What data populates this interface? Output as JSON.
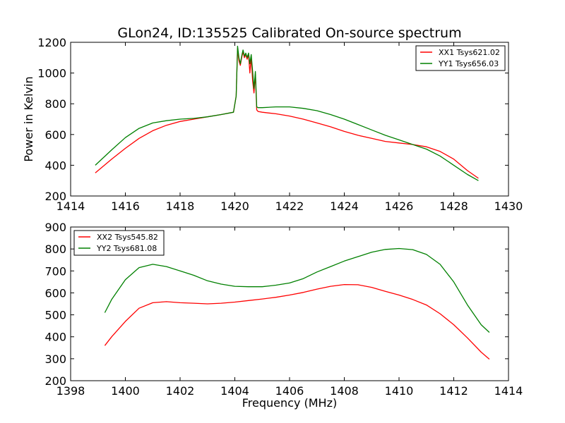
{
  "chart_data": [
    {
      "type": "line",
      "title": "GLon24, ID:135525 Calibrated On-source spectrum",
      "ylabel": "Power in Kelvin",
      "xlabel": "",
      "xlim": [
        1414,
        1430
      ],
      "ylim": [
        200,
        1200
      ],
      "xticks": [
        "1414",
        "1416",
        "1418",
        "1420",
        "1422",
        "1424",
        "1426",
        "1428",
        "1430"
      ],
      "yticks": [
        "200",
        "400",
        "600",
        "800",
        "1000",
        "1200"
      ],
      "legend_position": "top-right",
      "series": [
        {
          "name": "XX1 Tsys621.02",
          "color": "#ff0000",
          "x": [
            1414.9,
            1415.5,
            1416.0,
            1416.5,
            1417.0,
            1417.5,
            1418.0,
            1418.5,
            1419.0,
            1419.5,
            1419.95,
            1420.05,
            1420.1,
            1420.15,
            1420.2,
            1420.25,
            1420.3,
            1420.35,
            1420.4,
            1420.45,
            1420.5,
            1420.55,
            1420.6,
            1420.65,
            1420.7,
            1420.75,
            1420.8,
            1420.85,
            1421.0,
            1421.5,
            1422.0,
            1422.5,
            1423.0,
            1423.5,
            1424.0,
            1424.5,
            1425.0,
            1425.5,
            1426.0,
            1426.5,
            1427.0,
            1427.5,
            1428.0,
            1428.5,
            1428.9
          ],
          "y": [
            350,
            440,
            510,
            575,
            625,
            660,
            685,
            700,
            715,
            730,
            745,
            850,
            1160,
            1080,
            1050,
            1100,
            1140,
            1100,
            1120,
            1090,
            1120,
            1000,
            1100,
            950,
            870,
            990,
            760,
            750,
            745,
            735,
            720,
            700,
            675,
            650,
            620,
            595,
            575,
            555,
            545,
            535,
            520,
            490,
            440,
            365,
            315
          ]
        },
        {
          "name": "YY1 Tsys656.03",
          "color": "#008000",
          "x": [
            1414.9,
            1415.5,
            1416.0,
            1416.5,
            1417.0,
            1417.5,
            1418.0,
            1418.5,
            1419.0,
            1419.5,
            1419.95,
            1420.05,
            1420.1,
            1420.15,
            1420.2,
            1420.25,
            1420.3,
            1420.35,
            1420.4,
            1420.45,
            1420.5,
            1420.55,
            1420.6,
            1420.65,
            1420.7,
            1420.75,
            1420.8,
            1420.85,
            1421.0,
            1421.5,
            1422.0,
            1422.5,
            1423.0,
            1423.5,
            1424.0,
            1424.5,
            1425.0,
            1425.5,
            1426.0,
            1426.5,
            1427.0,
            1427.5,
            1428.0,
            1428.5,
            1428.9
          ],
          "y": [
            400,
            500,
            580,
            640,
            675,
            690,
            700,
            705,
            715,
            730,
            745,
            850,
            1175,
            1100,
            1060,
            1110,
            1150,
            1110,
            1130,
            1100,
            1130,
            1060,
            1120,
            1010,
            900,
            1010,
            780,
            775,
            775,
            780,
            780,
            770,
            755,
            730,
            700,
            665,
            630,
            595,
            565,
            535,
            505,
            460,
            400,
            340,
            300
          ]
        }
      ]
    },
    {
      "type": "line",
      "title": "",
      "xlabel": "Frequency (MHz)",
      "ylabel": "",
      "xlim": [
        1398,
        1414
      ],
      "ylim": [
        200,
        900
      ],
      "xticks": [
        "1398",
        "1400",
        "1402",
        "1404",
        "1406",
        "1408",
        "1410",
        "1412",
        "1414"
      ],
      "yticks": [
        "200",
        "300",
        "400",
        "500",
        "600",
        "700",
        "800",
        "900"
      ],
      "legend_position": "top-left",
      "series": [
        {
          "name": "XX2 Tsys545.82",
          "color": "#ff0000",
          "x": [
            1399.25,
            1399.5,
            1400.0,
            1400.5,
            1401.0,
            1401.5,
            1402.0,
            1402.5,
            1403.0,
            1403.5,
            1404.0,
            1404.5,
            1405.0,
            1405.5,
            1406.0,
            1406.5,
            1407.0,
            1407.5,
            1408.0,
            1408.5,
            1409.0,
            1409.5,
            1410.0,
            1410.5,
            1411.0,
            1411.5,
            1412.0,
            1412.5,
            1413.0,
            1413.3
          ],
          "y": [
            360,
            400,
            470,
            530,
            555,
            560,
            555,
            553,
            550,
            553,
            558,
            565,
            572,
            580,
            590,
            602,
            617,
            630,
            638,
            637,
            625,
            607,
            590,
            570,
            545,
            505,
            455,
            395,
            330,
            298
          ]
        },
        {
          "name": "YY2 Tsys681.08",
          "color": "#008000",
          "x": [
            1399.25,
            1399.5,
            1400.0,
            1400.5,
            1401.0,
            1401.5,
            1402.0,
            1402.5,
            1403.0,
            1403.5,
            1404.0,
            1404.5,
            1405.0,
            1405.5,
            1406.0,
            1406.5,
            1407.0,
            1407.5,
            1408.0,
            1408.5,
            1409.0,
            1409.5,
            1410.0,
            1410.5,
            1411.0,
            1411.5,
            1412.0,
            1412.5,
            1413.0,
            1413.3
          ],
          "y": [
            510,
            570,
            660,
            715,
            730,
            720,
            700,
            680,
            655,
            640,
            630,
            628,
            628,
            635,
            645,
            665,
            695,
            720,
            745,
            765,
            785,
            798,
            802,
            797,
            775,
            730,
            650,
            545,
            455,
            420
          ]
        }
      ]
    }
  ]
}
